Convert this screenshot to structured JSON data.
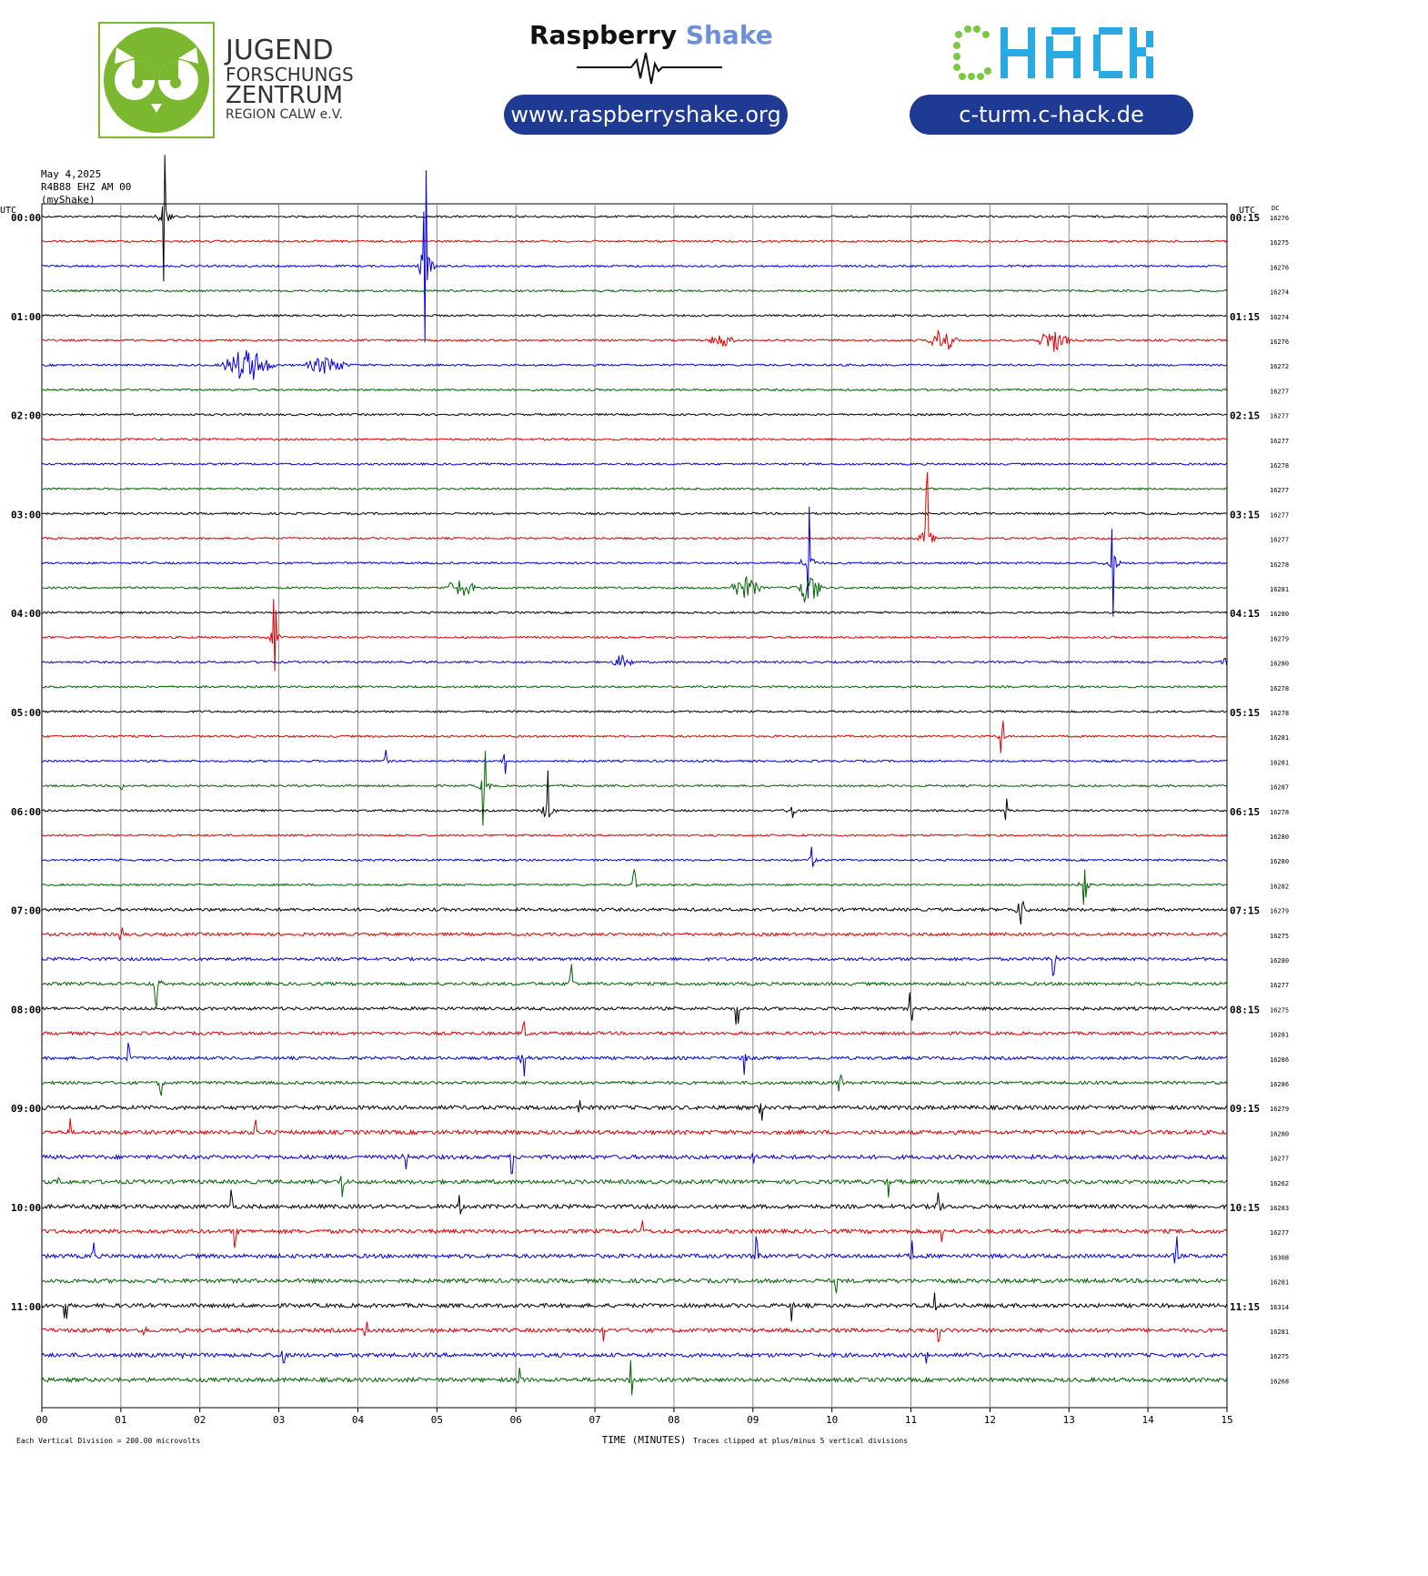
{
  "header": {
    "jfz": {
      "line1": "JUGEND",
      "line2": "FORSCHUNGS",
      "line3": "ZENTRUM",
      "line4": "REGION CALW e.V.",
      "color": "#7cb82f"
    },
    "raspberry": {
      "word1": "Raspberry",
      "word2": "Shake",
      "url": "www.raspberryshake.org",
      "accent": "#6b8fd8"
    },
    "chack": {
      "c1": "C",
      "rest": "HACK",
      "url": "c-turm.c-hack.de",
      "green": "#7ac943",
      "blue": "#29abe2"
    },
    "pill_color": "#1f3a93"
  },
  "chart_data": {
    "type": "line",
    "date": "May 4,2025",
    "station": "R4B88 EHZ AM 00",
    "network": "(myShake)",
    "left_utc_label": "UTC",
    "right_utc_label": "UTC",
    "dc_label": "DC",
    "xlabel": "TIME (MINUTES)",
    "x_ticks": [
      "00",
      "01",
      "02",
      "03",
      "04",
      "05",
      "06",
      "07",
      "08",
      "09",
      "10",
      "11",
      "12",
      "13",
      "14",
      "15"
    ],
    "left_hour_labels": [
      "00:00",
      "01:00",
      "02:00",
      "03:00",
      "04:00",
      "05:00",
      "06:00",
      "07:00",
      "08:00",
      "09:00",
      "10:00",
      "11:00"
    ],
    "right_hour_labels": [
      "00:15",
      "01:15",
      "02:15",
      "03:15",
      "04:15",
      "05:15",
      "06:15",
      "07:15",
      "08:15",
      "09:15",
      "10:15",
      "11:15"
    ],
    "dc_values": [
      "16276",
      "16275",
      "16276",
      "16274",
      "16274",
      "16276",
      "16272",
      "16277",
      "16277",
      "16277",
      "16278",
      "16277",
      "16277",
      "16277",
      "16278",
      "16281",
      "16280",
      "16279",
      "16280",
      "16278",
      "16278",
      "16281",
      "16281",
      "16287",
      "16278",
      "16280",
      "16280",
      "16282",
      "16279",
      "16275",
      "16280",
      "16277",
      "16275",
      "16281",
      "16286",
      "16286",
      "16279",
      "16280",
      "16277",
      "16262",
      "16283",
      "16277",
      "16308",
      "16281",
      "16314",
      "16281",
      "16275",
      "16268"
    ],
    "trace_colors": [
      "#000000",
      "#e00000",
      "#0000e0",
      "#006400"
    ],
    "footer_left": "Each Vertical Division =  200.00 microvolts",
    "footer_right": "Traces clipped at plus/minus 5 vertical divisions",
    "events": [
      {
        "row": 0,
        "minute": 1.55,
        "amp": 82,
        "dur": 0.05
      },
      {
        "row": 2,
        "minute": 4.85,
        "amp": 115,
        "dur": 0.06
      },
      {
        "row": 5,
        "minute": 11.4,
        "amp": 14,
        "dur": 0.5
      },
      {
        "row": 5,
        "minute": 12.8,
        "amp": 13,
        "dur": 0.6
      },
      {
        "row": 5,
        "minute": 8.6,
        "amp": 8,
        "dur": 0.5
      },
      {
        "row": 6,
        "minute": 2.6,
        "amp": 18,
        "dur": 0.9
      },
      {
        "row": 6,
        "minute": 3.6,
        "amp": 10,
        "dur": 0.8
      },
      {
        "row": 13,
        "minute": 11.2,
        "amp": 76,
        "dur": 0.05
      },
      {
        "row": 14,
        "minute": 9.7,
        "amp": 80,
        "dur": 0.06
      },
      {
        "row": 14,
        "minute": 13.55,
        "amp": 62,
        "dur": 0.05
      },
      {
        "row": 15,
        "minute": 5.3,
        "amp": 10,
        "dur": 0.6
      },
      {
        "row": 15,
        "minute": 8.9,
        "amp": 12,
        "dur": 0.6
      },
      {
        "row": 15,
        "minute": 9.7,
        "amp": 18,
        "dur": 0.5
      },
      {
        "row": 17,
        "minute": 2.95,
        "amp": 52,
        "dur": 0.05
      },
      {
        "row": 18,
        "minute": 7.35,
        "amp": 8,
        "dur": 0.4
      },
      {
        "row": 18,
        "minute": 15.0,
        "amp": 30,
        "dur": 0.03
      },
      {
        "row": 21,
        "minute": 12.15,
        "amp": 26,
        "dur": 0.05
      },
      {
        "row": 22,
        "minute": 4.35,
        "amp": 14,
        "dur": 0.05
      },
      {
        "row": 22,
        "minute": 5.85,
        "amp": 16,
        "dur": 0.05
      },
      {
        "row": 23,
        "minute": 1.0,
        "amp": 10,
        "dur": 0.05
      },
      {
        "row": 24,
        "minute": 6.4,
        "amp": 58,
        "dur": 0.05
      },
      {
        "row": 24,
        "minute": 9.5,
        "amp": 30,
        "dur": 0.05
      },
      {
        "row": 24,
        "minute": 12.2,
        "amp": 14,
        "dur": 0.05
      },
      {
        "row": 23,
        "minute": 5.6,
        "amp": 50,
        "dur": 0.03
      },
      {
        "row": 26,
        "minute": 9.75,
        "amp": 22,
        "dur": 0.05
      },
      {
        "row": 27,
        "minute": 7.5,
        "amp": 18,
        "dur": 0.05
      },
      {
        "row": 27,
        "minute": 13.2,
        "amp": 38,
        "dur": 0.08
      },
      {
        "row": 28,
        "minute": 12.4,
        "amp": 60,
        "dur": 0.05
      },
      {
        "row": 29,
        "minute": 1.0,
        "amp": 10,
        "dur": 0.05
      },
      {
        "row": 30,
        "minute": 12.8,
        "amp": 35,
        "dur": 0.05
      },
      {
        "row": 31,
        "minute": 1.45,
        "amp": 40,
        "dur": 0.08
      },
      {
        "row": 31,
        "minute": 6.7,
        "amp": 30,
        "dur": 0.05
      },
      {
        "row": 32,
        "minute": 8.8,
        "amp": 18,
        "dur": 0.05
      },
      {
        "row": 32,
        "minute": 11.0,
        "amp": 18,
        "dur": 0.05
      },
      {
        "row": 33,
        "minute": 6.1,
        "amp": 20,
        "dur": 0.05
      },
      {
        "row": 34,
        "minute": 1.1,
        "amp": 18,
        "dur": 0.06
      },
      {
        "row": 34,
        "minute": 6.1,
        "amp": 40,
        "dur": 0.06
      },
      {
        "row": 34,
        "minute": 8.9,
        "amp": 24,
        "dur": 0.06
      },
      {
        "row": 35,
        "minute": 1.5,
        "amp": 20,
        "dur": 0.06
      },
      {
        "row": 35,
        "minute": 10.1,
        "amp": 24,
        "dur": 0.06
      },
      {
        "row": 36,
        "minute": 6.8,
        "amp": 18,
        "dur": 0.06
      },
      {
        "row": 36,
        "minute": 9.1,
        "amp": 16,
        "dur": 0.06
      },
      {
        "row": 37,
        "minute": 0.35,
        "amp": 16,
        "dur": 0.05
      },
      {
        "row": 37,
        "minute": 2.7,
        "amp": 20,
        "dur": 0.05
      },
      {
        "row": 38,
        "minute": 4.6,
        "amp": 24,
        "dur": 0.1
      },
      {
        "row": 38,
        "minute": 5.95,
        "amp": 20,
        "dur": 0.05
      },
      {
        "row": 38,
        "minute": 9.0,
        "amp": 12,
        "dur": 0.1
      },
      {
        "row": 39,
        "minute": 0.2,
        "amp": 20,
        "dur": 0.06
      },
      {
        "row": 39,
        "minute": 3.8,
        "amp": 24,
        "dur": 0.08
      },
      {
        "row": 39,
        "minute": 10.7,
        "amp": 20,
        "dur": 0.08
      },
      {
        "row": 40,
        "minute": 2.4,
        "amp": 28,
        "dur": 0.06
      },
      {
        "row": 40,
        "minute": 5.3,
        "amp": 20,
        "dur": 0.05
      },
      {
        "row": 40,
        "minute": 11.35,
        "amp": 36,
        "dur": 0.06
      },
      {
        "row": 41,
        "minute": 2.45,
        "amp": 22,
        "dur": 0.06
      },
      {
        "row": 41,
        "minute": 7.6,
        "amp": 14,
        "dur": 0.05
      },
      {
        "row": 41,
        "minute": 11.4,
        "amp": 16,
        "dur": 0.06
      },
      {
        "row": 42,
        "minute": 0.65,
        "amp": 22,
        "dur": 0.05
      },
      {
        "row": 42,
        "minute": 9.05,
        "amp": 36,
        "dur": 0.06
      },
      {
        "row": 42,
        "minute": 11.0,
        "amp": 20,
        "dur": 0.05
      },
      {
        "row": 42,
        "minute": 14.35,
        "amp": 24,
        "dur": 0.05
      },
      {
        "row": 43,
        "minute": 10.05,
        "amp": 14,
        "dur": 0.05
      },
      {
        "row": 44,
        "minute": 0.3,
        "amp": 16,
        "dur": 0.06
      },
      {
        "row": 44,
        "minute": 9.5,
        "amp": 20,
        "dur": 0.05
      },
      {
        "row": 44,
        "minute": 11.3,
        "amp": 20,
        "dur": 0.05
      },
      {
        "row": 45,
        "minute": 1.3,
        "amp": 14,
        "dur": 0.05
      },
      {
        "row": 45,
        "minute": 4.1,
        "amp": 16,
        "dur": 0.05
      },
      {
        "row": 45,
        "minute": 7.1,
        "amp": 14,
        "dur": 0.05
      },
      {
        "row": 45,
        "minute": 11.35,
        "amp": 14,
        "dur": 0.05
      },
      {
        "row": 46,
        "minute": 1.8,
        "amp": 18,
        "dur": 0.05
      },
      {
        "row": 46,
        "minute": 3.05,
        "amp": 26,
        "dur": 0.05
      },
      {
        "row": 46,
        "minute": 11.2,
        "amp": 18,
        "dur": 0.05
      },
      {
        "row": 47,
        "minute": 6.05,
        "amp": 30,
        "dur": 0.05
      },
      {
        "row": 47,
        "minute": 7.45,
        "amp": 26,
        "dur": 0.05
      }
    ]
  }
}
